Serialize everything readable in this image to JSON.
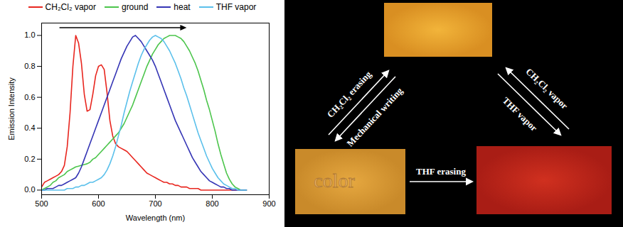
{
  "chart_data": {
    "type": "line",
    "xlabel": "Wavelength (nm)",
    "ylabel": "Emission Intensity",
    "x": [
      500,
      505,
      510,
      515,
      520,
      525,
      530,
      535,
      540,
      545,
      550,
      555,
      560,
      565,
      570,
      575,
      580,
      585,
      590,
      595,
      600,
      605,
      610,
      615,
      620,
      625,
      630,
      635,
      640,
      645,
      650,
      655,
      660,
      665,
      670,
      675,
      680,
      685,
      690,
      695,
      700,
      705,
      710,
      715,
      720,
      725,
      730,
      735,
      740,
      745,
      750,
      755,
      760,
      765,
      770,
      775,
      780,
      785,
      790,
      795,
      800,
      805,
      810,
      815,
      820,
      825,
      830,
      835,
      840,
      845,
      850,
      855,
      860
    ],
    "series": [
      {
        "name": "CH₂Cl₂ vapor",
        "color": "#e8261f",
        "values": [
          0.02,
          0.05,
          0.06,
          0.07,
          0.08,
          0.09,
          0.1,
          0.12,
          0.16,
          0.28,
          0.5,
          0.8,
          1.0,
          0.95,
          0.82,
          0.62,
          0.51,
          0.52,
          0.62,
          0.74,
          0.8,
          0.81,
          0.78,
          0.63,
          0.45,
          0.35,
          0.3,
          0.28,
          0.27,
          0.26,
          0.25,
          0.23,
          0.21,
          0.19,
          0.17,
          0.15,
          0.13,
          0.11,
          0.1,
          0.09,
          0.08,
          0.07,
          0.06,
          0.05,
          0.05,
          0.04,
          0.04,
          0.03,
          0.03,
          0.02,
          0.02,
          0.02,
          0.01,
          0.01,
          0.01,
          0.01,
          0,
          0,
          0,
          0,
          0,
          0,
          0,
          0,
          0,
          0,
          0,
          0,
          0,
          0,
          0,
          0,
          0
        ]
      },
      {
        "name": "ground",
        "color": "#4cc54c",
        "values": [
          0,
          0.01,
          0.02,
          0.03,
          0.05,
          0.06,
          0.08,
          0.09,
          0.1,
          0.12,
          0.13,
          0.14,
          0.15,
          0.155,
          0.16,
          0.165,
          0.17,
          0.18,
          0.2,
          0.21,
          0.23,
          0.25,
          0.27,
          0.29,
          0.31,
          0.33,
          0.35,
          0.37,
          0.4,
          0.43,
          0.47,
          0.51,
          0.55,
          0.6,
          0.65,
          0.7,
          0.75,
          0.8,
          0.84,
          0.88,
          0.91,
          0.94,
          0.96,
          0.98,
          0.99,
          1.0,
          1.0,
          1.0,
          0.99,
          0.98,
          0.96,
          0.93,
          0.9,
          0.86,
          0.82,
          0.77,
          0.71,
          0.65,
          0.58,
          0.52,
          0.45,
          0.38,
          0.3,
          0.23,
          0.17,
          0.11,
          0.07,
          0.04,
          0.02,
          0.01,
          0,
          0,
          0
        ]
      },
      {
        "name": "heat",
        "color": "#3535b5",
        "values": [
          0,
          0,
          0.01,
          0.01,
          0.01,
          0.02,
          0.03,
          0.03,
          0.04,
          0.05,
          0.06,
          0.07,
          0.08,
          0.11,
          0.15,
          0.2,
          0.25,
          0.3,
          0.35,
          0.4,
          0.45,
          0.5,
          0.55,
          0.6,
          0.65,
          0.7,
          0.75,
          0.8,
          0.85,
          0.89,
          0.93,
          0.96,
          0.99,
          1.0,
          0.98,
          0.96,
          0.93,
          0.9,
          0.87,
          0.84,
          0.8,
          0.75,
          0.7,
          0.65,
          0.6,
          0.55,
          0.5,
          0.45,
          0.41,
          0.37,
          0.33,
          0.29,
          0.25,
          0.21,
          0.18,
          0.15,
          0.12,
          0.1,
          0.08,
          0.06,
          0.05,
          0.04,
          0.03,
          0.02,
          0.02,
          0.01,
          0.01,
          0,
          0,
          0,
          0,
          0,
          0
        ]
      },
      {
        "name": "THF vapor",
        "color": "#5bc0eb",
        "values": [
          0,
          0,
          0,
          0,
          0,
          0,
          0,
          0,
          0,
          0.01,
          0.01,
          0.01,
          0.02,
          0.02,
          0.03,
          0.03,
          0.04,
          0.05,
          0.05,
          0.06,
          0.07,
          0.08,
          0.1,
          0.13,
          0.17,
          0.22,
          0.28,
          0.35,
          0.42,
          0.5,
          0.57,
          0.64,
          0.7,
          0.76,
          0.82,
          0.87,
          0.91,
          0.94,
          0.97,
          0.99,
          1.0,
          0.99,
          0.98,
          0.96,
          0.93,
          0.9,
          0.86,
          0.82,
          0.77,
          0.72,
          0.66,
          0.61,
          0.55,
          0.49,
          0.43,
          0.37,
          0.32,
          0.27,
          0.22,
          0.18,
          0.14,
          0.11,
          0.08,
          0.06,
          0.04,
          0.03,
          0.02,
          0.01,
          0.01,
          0,
          0,
          0,
          0
        ]
      }
    ],
    "xlim": [
      500,
      900
    ],
    "xticks": [
      500,
      600,
      700,
      800,
      900
    ],
    "ylim": [
      -0.03,
      1.08
    ],
    "yticks": [
      {
        "value": 0,
        "label": "0.0"
      },
      0.2,
      0.4,
      0.6,
      0.8,
      {
        "value": 1,
        "label": "1.0"
      }
    ],
    "grid": false,
    "legend": "top"
  },
  "diagram": {
    "sample_writing": "color",
    "arrows": [
      {
        "label": "CH₂Cl₂ erasing"
      },
      {
        "label": "Mechanical writing"
      },
      {
        "label": "CH₂Cl₂ vapor"
      },
      {
        "label": "THF vapor"
      },
      {
        "label": "THF erasing"
      }
    ]
  }
}
